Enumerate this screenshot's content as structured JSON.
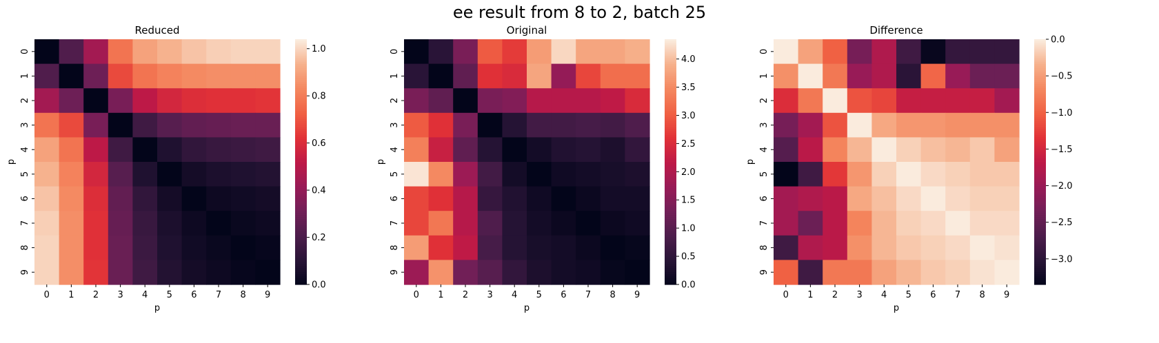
{
  "figure": {
    "suptitle": "ee result from 8 to 2, batch 25"
  },
  "chart_data": [
    {
      "type": "heatmap",
      "title": "Reduced",
      "xlabel": "p",
      "ylabel": "p",
      "x_ticks": [
        "0",
        "1",
        "2",
        "3",
        "4",
        "5",
        "6",
        "7",
        "8",
        "9"
      ],
      "y_ticks": [
        "0",
        "1",
        "2",
        "3",
        "4",
        "5",
        "6",
        "7",
        "8",
        "9"
      ],
      "colormap": "rocket",
      "vmin": 0.0,
      "vmax": 1.04,
      "colorbar_ticks": [
        0.0,
        0.2,
        0.4,
        0.6,
        0.8,
        1.0
      ],
      "colorbar_labels": [
        "0.0",
        "0.2",
        "0.4",
        "0.6",
        "0.8",
        "1.0"
      ],
      "matrix": [
        [
          0.0,
          0.22,
          0.45,
          0.78,
          0.9,
          0.94,
          0.97,
          0.99,
          1.0,
          1.0
        ],
        [
          0.22,
          0.0,
          0.3,
          0.68,
          0.78,
          0.82,
          0.84,
          0.85,
          0.85,
          0.85
        ],
        [
          0.45,
          0.3,
          0.0,
          0.33,
          0.52,
          0.58,
          0.61,
          0.62,
          0.62,
          0.63
        ],
        [
          0.78,
          0.68,
          0.33,
          0.0,
          0.17,
          0.24,
          0.27,
          0.28,
          0.29,
          0.29
        ],
        [
          0.9,
          0.78,
          0.52,
          0.17,
          0.0,
          0.08,
          0.13,
          0.15,
          0.16,
          0.17
        ],
        [
          0.94,
          0.82,
          0.58,
          0.24,
          0.08,
          0.0,
          0.05,
          0.07,
          0.08,
          0.09
        ],
        [
          0.97,
          0.84,
          0.61,
          0.27,
          0.13,
          0.05,
          0.0,
          0.03,
          0.04,
          0.05
        ],
        [
          0.99,
          0.85,
          0.62,
          0.28,
          0.15,
          0.07,
          0.03,
          0.0,
          0.02,
          0.03
        ],
        [
          1.0,
          0.85,
          0.62,
          0.29,
          0.16,
          0.08,
          0.04,
          0.02,
          0.0,
          0.01
        ],
        [
          1.0,
          0.85,
          0.63,
          0.29,
          0.17,
          0.09,
          0.05,
          0.03,
          0.01,
          0.0
        ]
      ]
    },
    {
      "type": "heatmap",
      "title": "Original",
      "xlabel": "p",
      "ylabel": "p",
      "x_ticks": [
        "0",
        "1",
        "2",
        "3",
        "4",
        "5",
        "6",
        "7",
        "8",
        "9"
      ],
      "y_ticks": [
        "0",
        "1",
        "2",
        "3",
        "4",
        "5",
        "6",
        "7",
        "8",
        "9"
      ],
      "colormap": "rocket",
      "vmin": 0.0,
      "vmax": 4.35,
      "colorbar_ticks": [
        0.0,
        0.5,
        1.0,
        1.5,
        2.0,
        2.5,
        3.0,
        3.5,
        4.0
      ],
      "colorbar_labels": [
        "0.0",
        "0.5",
        "1.0",
        "1.5",
        "2.0",
        "2.5",
        "3.0",
        "3.5",
        "4.0"
      ],
      "matrix": [
        [
          0.0,
          0.45,
          1.4,
          3.0,
          2.7,
          3.7,
          4.2,
          3.8,
          3.8,
          3.9
        ],
        [
          0.45,
          0.0,
          1.1,
          2.6,
          2.5,
          3.8,
          1.7,
          2.8,
          3.2,
          3.2
        ],
        [
          1.4,
          1.1,
          0.0,
          1.4,
          1.5,
          2.1,
          2.1,
          2.1,
          2.2,
          2.5
        ],
        [
          3.0,
          2.6,
          1.4,
          0.0,
          0.4,
          0.75,
          0.75,
          0.8,
          0.75,
          0.9
        ],
        [
          3.4,
          2.3,
          1.1,
          0.4,
          0.0,
          0.2,
          0.35,
          0.4,
          0.3,
          0.55
        ],
        [
          4.3,
          3.5,
          1.8,
          0.75,
          0.2,
          0.0,
          0.15,
          0.2,
          0.25,
          0.3
        ],
        [
          2.8,
          2.6,
          2.1,
          0.6,
          0.35,
          0.15,
          0.0,
          0.1,
          0.2,
          0.2
        ],
        [
          2.8,
          3.3,
          2.1,
          0.9,
          0.4,
          0.2,
          0.1,
          0.0,
          0.1,
          0.15
        ],
        [
          3.7,
          2.6,
          2.2,
          0.8,
          0.4,
          0.25,
          0.2,
          0.1,
          0.0,
          0.05
        ],
        [
          1.8,
          3.6,
          1.3,
          1.0,
          0.55,
          0.3,
          0.2,
          0.15,
          0.05,
          0.0
        ]
      ]
    },
    {
      "type": "heatmap",
      "title": "Difference",
      "xlabel": "p",
      "ylabel": "p",
      "x_ticks": [
        "0",
        "1",
        "2",
        "3",
        "4",
        "5",
        "6",
        "7",
        "8",
        "9"
      ],
      "y_ticks": [
        "0",
        "1",
        "2",
        "3",
        "4",
        "5",
        "6",
        "7",
        "8",
        "9"
      ],
      "colormap": "rocket",
      "vmin": -3.35,
      "vmax": 0.0,
      "colorbar_ticks": [
        -3.0,
        -2.5,
        -2.0,
        -1.5,
        -1.0,
        -0.5,
        0.0
      ],
      "colorbar_labels": [
        "−3.0",
        "−2.5",
        "−2.0",
        "−1.5",
        "−1.0",
        "−0.5",
        "0.0"
      ],
      "matrix": [
        [
          0.0,
          -0.45,
          -1.0,
          -2.3,
          -1.8,
          -2.8,
          -3.3,
          -2.9,
          -2.9,
          -2.9
        ],
        [
          -0.6,
          0.0,
          -0.8,
          -2.0,
          -1.8,
          -3.0,
          -0.95,
          -2.0,
          -2.4,
          -2.4
        ],
        [
          -1.4,
          -0.8,
          0.0,
          -1.1,
          -1.2,
          -1.6,
          -1.6,
          -1.6,
          -1.6,
          -1.9
        ],
        [
          -2.3,
          -1.9,
          -1.1,
          0.0,
          -0.4,
          -0.55,
          -0.55,
          -0.6,
          -0.6,
          -0.6
        ],
        [
          -2.6,
          -1.7,
          -0.7,
          -0.3,
          0.0,
          -0.15,
          -0.25,
          -0.3,
          -0.2,
          -0.45
        ],
        [
          -3.35,
          -2.8,
          -1.3,
          -0.55,
          -0.15,
          0.0,
          -0.1,
          -0.15,
          -0.2,
          -0.2
        ],
        [
          -1.9,
          -1.8,
          -1.7,
          -0.4,
          -0.25,
          -0.1,
          0.0,
          -0.1,
          -0.15,
          -0.15
        ],
        [
          -1.9,
          -2.4,
          -1.7,
          -0.7,
          -0.3,
          -0.15,
          -0.1,
          0.0,
          -0.1,
          -0.1
        ],
        [
          -2.8,
          -1.8,
          -1.7,
          -0.6,
          -0.3,
          -0.2,
          -0.15,
          -0.1,
          0.0,
          -0.05
        ],
        [
          -1.0,
          -2.8,
          -0.8,
          -0.8,
          -0.45,
          -0.3,
          -0.2,
          -0.15,
          -0.05,
          0.0
        ]
      ]
    }
  ]
}
